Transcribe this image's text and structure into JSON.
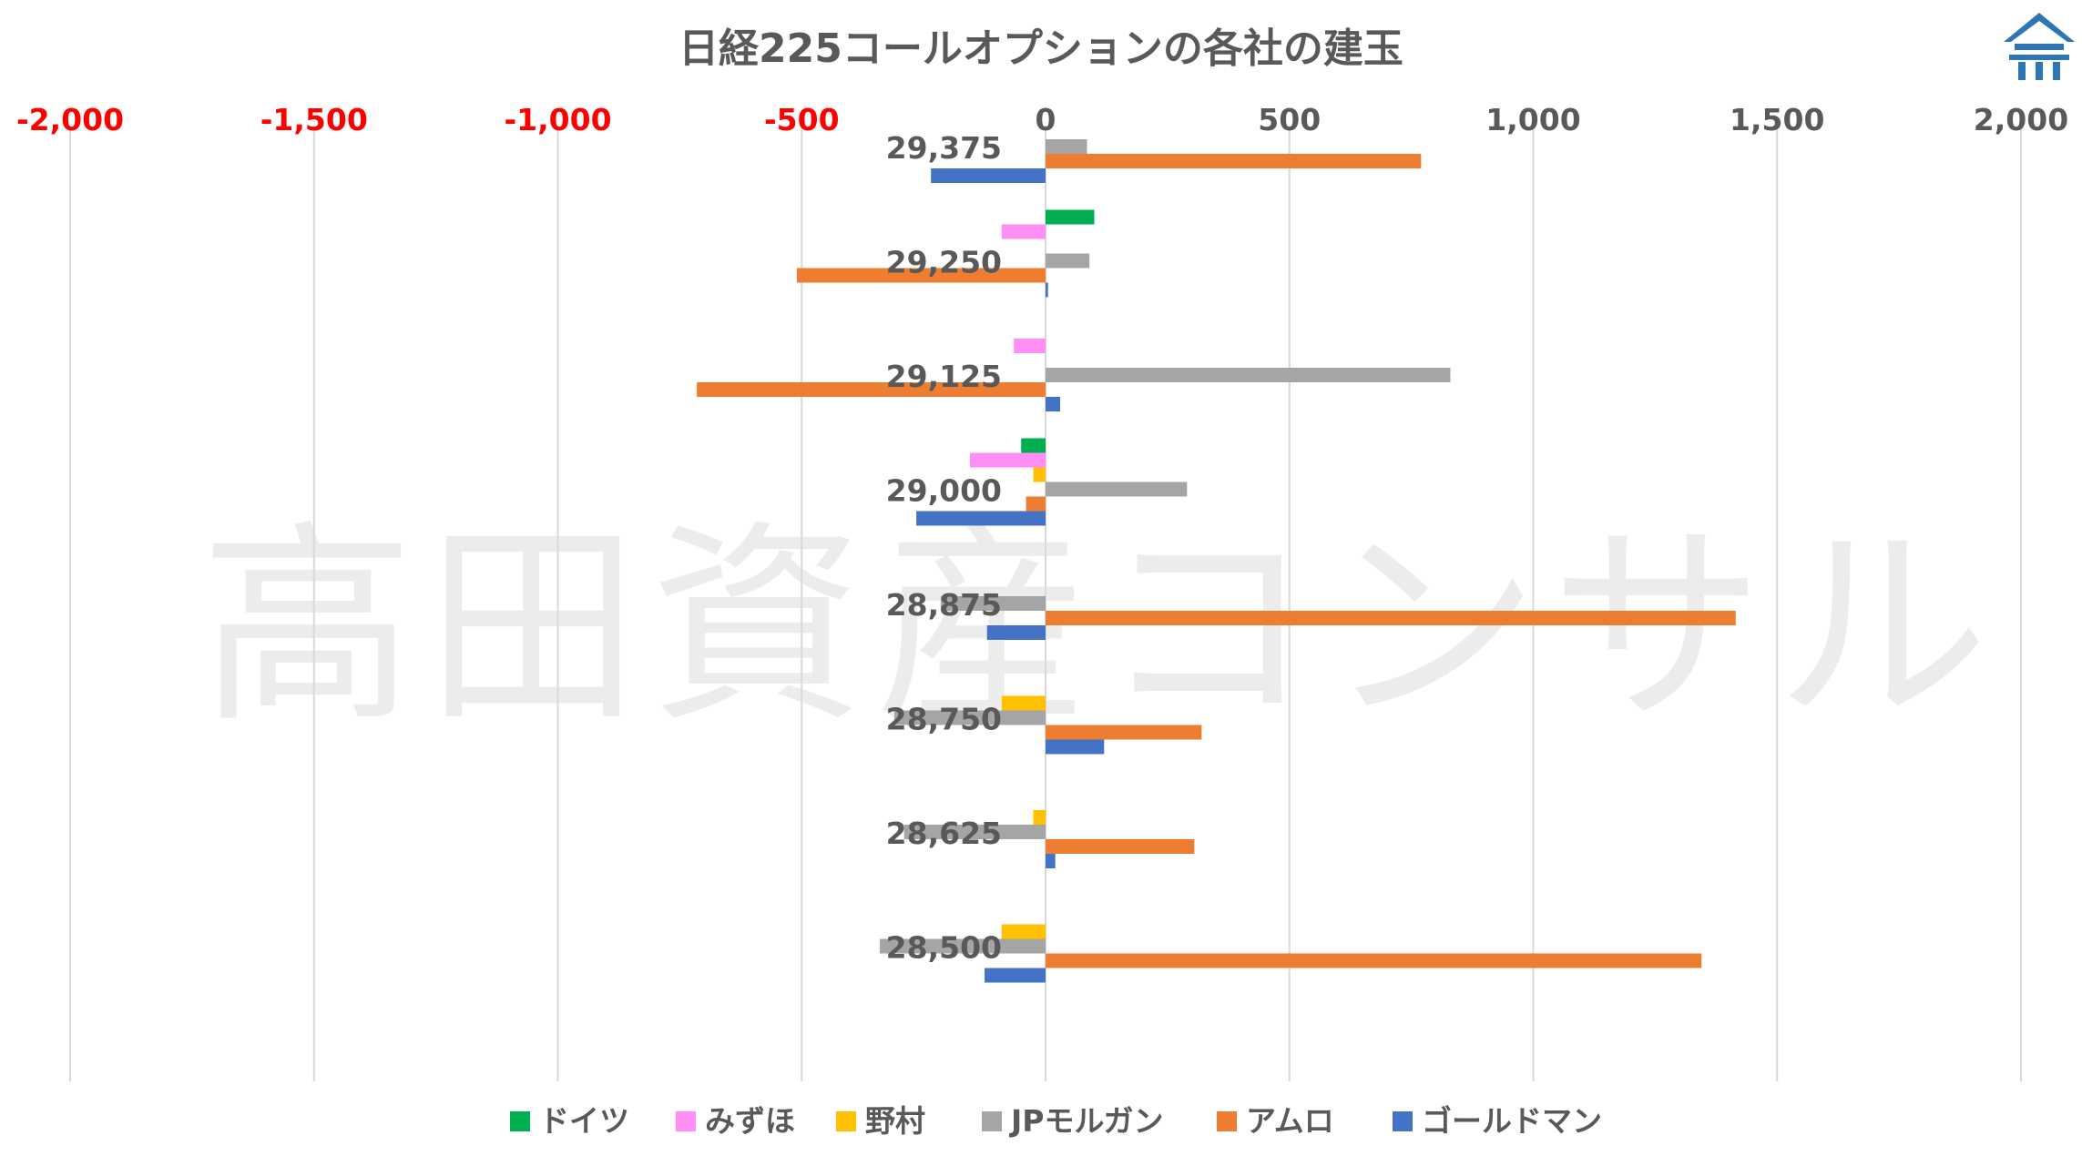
{
  "watermark": "高田資産コンサル",
  "logo_icon": "building-roof-logo-icon",
  "colors": {
    "grid": "#d9d9d9",
    "negative_tick": "#ff0000",
    "positive_tick": "#595959",
    "text": "#595959",
    "logo": "#2e75b6"
  },
  "chart_data": {
    "type": "bar",
    "orientation": "horizontal",
    "title": "日経225コールオプションの各社の建玉",
    "xlabel": "",
    "ylabel": "",
    "xlim": [
      -2000,
      2000
    ],
    "xticks": [
      -2000,
      -1500,
      -1000,
      -500,
      0,
      500,
      1000,
      1500,
      2000
    ],
    "xtick_labels": [
      "-2,000",
      "-1,500",
      "-1,000",
      "-500",
      "0",
      "500",
      "1,000",
      "1,500",
      "2,000"
    ],
    "x_axis_position": "top",
    "grid": true,
    "legend_position": "bottom",
    "categories": [
      "29,375",
      "29,250",
      "29,125",
      "29,000",
      "28,875",
      "28,750",
      "28,625",
      "28,500"
    ],
    "series": [
      {
        "name": "ドイツ",
        "color": "#00b050",
        "values": [
          0,
          100,
          0,
          -50,
          0,
          0,
          0,
          0
        ]
      },
      {
        "name": "みずほ",
        "color": "#ff8ff5",
        "values": [
          0,
          -90,
          -65,
          -155,
          0,
          0,
          0,
          0
        ]
      },
      {
        "name": "野村",
        "color": "#ffc000",
        "values": [
          0,
          0,
          0,
          -25,
          0,
          -90,
          -25,
          -90
        ]
      },
      {
        "name": "JPモルガン",
        "color": "#a5a5a5",
        "values": [
          85,
          90,
          830,
          290,
          -215,
          -310,
          -290,
          -340
        ]
      },
      {
        "name": "アムロ",
        "color": "#ed7d31",
        "values": [
          770,
          -510,
          -715,
          -40,
          1415,
          320,
          305,
          1345
        ]
      },
      {
        "name": "ゴールドマン",
        "color": "#4472c4",
        "values": [
          -235,
          5,
          30,
          -265,
          -120,
          120,
          20,
          -125
        ]
      }
    ]
  }
}
